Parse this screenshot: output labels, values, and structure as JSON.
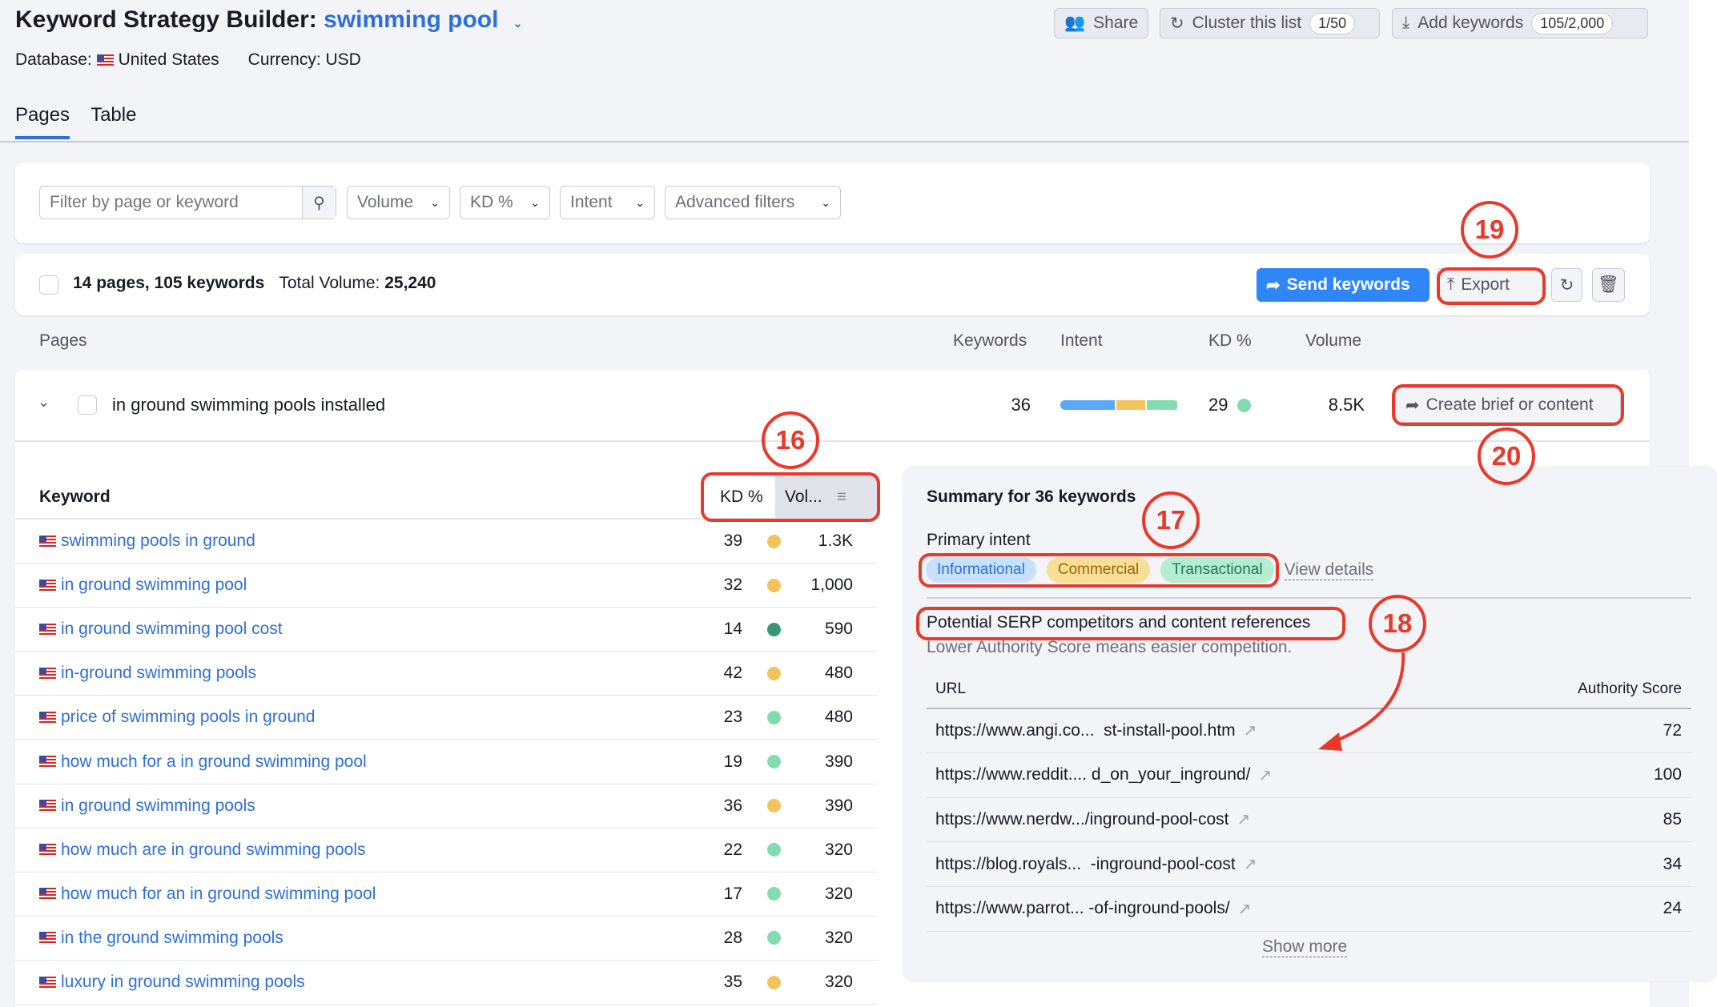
{
  "header": {
    "title_prefix": "Keyword Strategy Builder:",
    "title_keyword": "swimming pool",
    "database_label": "Database:",
    "database_value": "United States",
    "currency": "Currency: USD",
    "share_label": "Share",
    "cluster_label": "Cluster this list",
    "cluster_count": "1/50",
    "add_keywords_label": "Add keywords",
    "add_keywords_count": "105/2,000"
  },
  "tabs": [
    {
      "label": "Pages",
      "active": true
    },
    {
      "label": "Table",
      "active": false
    }
  ],
  "filters": {
    "search_placeholder": "Filter by page or keyword",
    "volume": "Volume",
    "kd": "KD %",
    "intent": "Intent",
    "advanced": "Advanced filters"
  },
  "summary_bar": {
    "counts": "14 pages, 105 keywords",
    "total_volume_label": "Total Volume:",
    "total_volume": "25,240",
    "send_keywords": "Send keywords",
    "export": "Export"
  },
  "columns": {
    "pages": "Pages",
    "keywords": "Keywords",
    "intent": "Intent",
    "kd": "KD %",
    "volume": "Volume"
  },
  "page_row": {
    "title": "in ground swimming pools installed",
    "keywords": "36",
    "kd": "29",
    "volume": "8.5K",
    "create_brief": "Create brief or content",
    "intent_mix": [
      {
        "intent": "Informational",
        "share": 0.47,
        "color": "#5aa9f7"
      },
      {
        "intent": "Commercial",
        "share": 0.26,
        "color": "#f3c35c"
      },
      {
        "intent": "Transactional",
        "share": 0.27,
        "color": "#83dcb0"
      }
    ],
    "kd_color": "#83dcb0"
  },
  "keyword_table": {
    "header_keyword": "Keyword",
    "header_kd": "KD %",
    "header_volume": "Vol...",
    "rows": [
      {
        "keyword": "swimming pools in ground",
        "kd": "39",
        "kd_color": "#f3c35c",
        "volume": "1.3K"
      },
      {
        "keyword": "in ground swimming pool",
        "kd": "32",
        "kd_color": "#f3c35c",
        "volume": "1,000"
      },
      {
        "keyword": "in ground swimming pool cost",
        "kd": "14",
        "kd_color": "#3a9677",
        "volume": "590"
      },
      {
        "keyword": "in-ground swimming pools",
        "kd": "42",
        "kd_color": "#f3c35c",
        "volume": "480"
      },
      {
        "keyword": "price of swimming pools in ground",
        "kd": "23",
        "kd_color": "#83dcb0",
        "volume": "480"
      },
      {
        "keyword": "how much for a in ground swimming pool",
        "kd": "19",
        "kd_color": "#83dcb0",
        "volume": "390"
      },
      {
        "keyword": "in ground swimming pools",
        "kd": "36",
        "kd_color": "#f3c35c",
        "volume": "390"
      },
      {
        "keyword": "how much are in ground swimming pools",
        "kd": "22",
        "kd_color": "#83dcb0",
        "volume": "320"
      },
      {
        "keyword": "how much for an in ground swimming pool",
        "kd": "17",
        "kd_color": "#83dcb0",
        "volume": "320"
      },
      {
        "keyword": "in the ground swimming pools",
        "kd": "28",
        "kd_color": "#83dcb0",
        "volume": "320"
      },
      {
        "keyword": "luxury in ground swimming pools",
        "kd": "35",
        "kd_color": "#f3c35c",
        "volume": "320"
      }
    ]
  },
  "summary_panel": {
    "title": "Summary for 36 keywords",
    "primary_intent": "Primary intent",
    "intents": [
      "Informational",
      "Commercial",
      "Transactional"
    ],
    "view_details": "View details",
    "competitors_title": "Potential SERP competitors and content references",
    "competitors_note": "Lower Authority Score means easier competition.",
    "url_header": "URL",
    "score_header": "Authority Score",
    "rows": [
      {
        "url": "https://www.angi.co...  st-install-pool.htm",
        "score": "72"
      },
      {
        "url": "https://www.reddit.... d_on_your_inground/",
        "score": "100"
      },
      {
        "url": "https://www.nerdw.../inground-pool-cost",
        "score": "85"
      },
      {
        "url": "https://blog.royals...  -inground-pool-cost",
        "score": "34"
      },
      {
        "url": "https://www.parrot... -of-inground-pools/",
        "score": "24"
      }
    ],
    "show_more": "Show more"
  },
  "annotations": [
    "16",
    "17",
    "18",
    "19",
    "20"
  ],
  "colors": {
    "accent": "#2f6fd6",
    "primary_button": "#2f86f6",
    "annotation": "#e8392b"
  }
}
